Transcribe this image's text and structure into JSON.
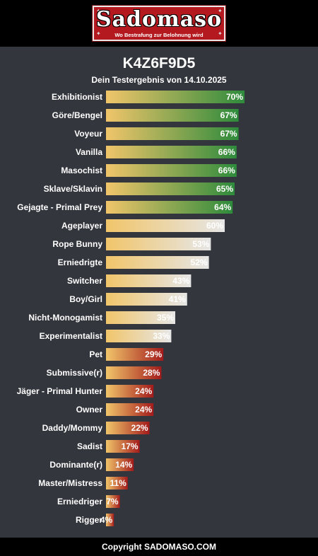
{
  "header": {
    "logo_title": "Sadomaso",
    "logo_subtitle": "Wo Bestrafung zur Belohnung wird",
    "title": "K4Z6F9D5",
    "subtitle": "Dein Testergebnis von 14.10.2025"
  },
  "footer": {
    "copyright": "Copyright SADOMASO.COM"
  },
  "colors": {
    "background": "#33363c",
    "bar_start": "#f1c56a",
    "high_end": "#2e8b3c",
    "mid_end": "#e6e6e6",
    "low_end": "#a31b1b"
  },
  "chart_data": {
    "type": "bar",
    "orientation": "horizontal",
    "title": "",
    "xlabel": "",
    "ylabel": "",
    "xlim": [
      0,
      100
    ],
    "unit": "%",
    "categories": [
      "Exhibitionist",
      "Göre/Bengel",
      "Voyeur",
      "Vanilla",
      "Masochist",
      "Sklave/Sklavin",
      "Gejagte - Primal Prey",
      "Ageplayer",
      "Rope Bunny",
      "Erniedrigte",
      "Switcher",
      "Boy/Girl",
      "Nicht-Monogamist",
      "Experimentalist",
      "Pet",
      "Submissive(r)",
      "Jäger - Primal Hunter",
      "Owner",
      "Daddy/Mommy",
      "Sadist",
      "Dominante(r)",
      "Master/Mistress",
      "Erniedriger",
      "Rigger"
    ],
    "values": [
      70,
      67,
      67,
      66,
      66,
      65,
      64,
      60,
      53,
      52,
      43,
      41,
      35,
      33,
      29,
      28,
      24,
      24,
      22,
      17,
      14,
      11,
      7,
      4
    ],
    "value_labels": [
      "70%",
      "67%",
      "67%",
      "66%",
      "66%",
      "65%",
      "64%",
      "60%",
      "53%",
      "52%",
      "43%",
      "41%",
      "35%",
      "33%",
      "29%",
      "28%",
      "24%",
      "24%",
      "22%",
      "17%",
      "14%",
      "11%",
      "7%",
      "4%"
    ]
  }
}
